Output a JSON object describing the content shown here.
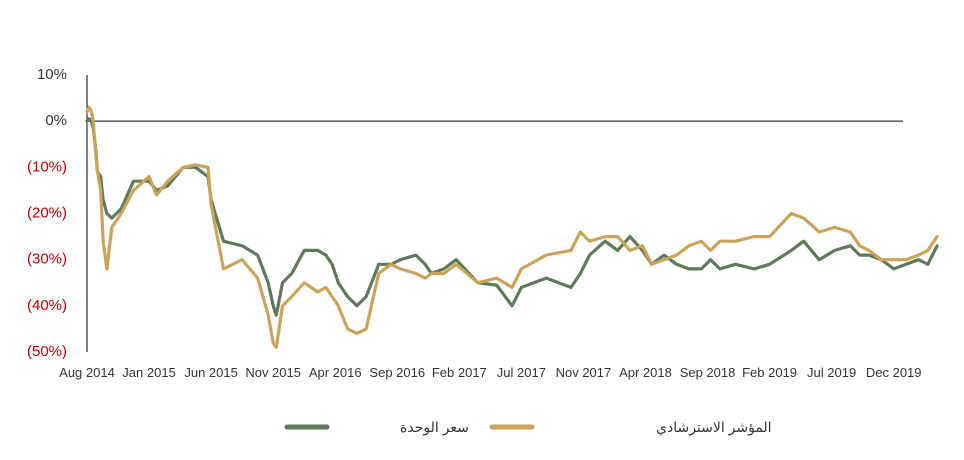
{
  "chart_data": {
    "type": "line",
    "title": "",
    "xlabel": "",
    "ylabel": "",
    "ylim": [
      -50,
      10
    ],
    "yticks": [
      {
        "value": 10,
        "label": "10%"
      },
      {
        "value": 0,
        "label": "0%"
      },
      {
        "value": -10,
        "label": "(10%)"
      },
      {
        "value": -20,
        "label": "(20%)"
      },
      {
        "value": -30,
        "label": "(30%)"
      },
      {
        "value": -40,
        "label": "(40%)"
      },
      {
        "value": -50,
        "label": "(50%)"
      }
    ],
    "categories": [
      "Aug 2014",
      "Jan 2015",
      "Jun 2015",
      "Nov 2015",
      "Apr 2016",
      "Sep 2016",
      "Feb 2017",
      "Jul 2017",
      "Nov 2017",
      "Apr 2018",
      "Sep 2018",
      "Feb 2019",
      "Jul 2019",
      "Dec 2019"
    ],
    "x": [
      0,
      0.03,
      0.06,
      0.08,
      0.1,
      0.14,
      0.17,
      0.22,
      0.26,
      0.32,
      0.4,
      0.55,
      0.75,
      1.0,
      1.12,
      1.3,
      1.55,
      1.75,
      1.95,
      2.0,
      2.2,
      2.5,
      2.75,
      2.92,
      3.0,
      3.05,
      3.15,
      3.3,
      3.5,
      3.72,
      3.85,
      3.95,
      4.05,
      4.2,
      4.35,
      4.5,
      4.7,
      4.9,
      5.05,
      5.3,
      5.45,
      5.55,
      5.75,
      5.95,
      6.3,
      6.6,
      6.85,
      7.0,
      7.4,
      7.8,
      7.95,
      8.1,
      8.35,
      8.55,
      8.75,
      8.95,
      9.1,
      9.3,
      9.5,
      9.7,
      9.9,
      10.05,
      10.2,
      10.45,
      10.75,
      11.0,
      11.35,
      11.55,
      11.8,
      12.05,
      12.3,
      12.45,
      12.6,
      12.8,
      13.0,
      13.2,
      13.4,
      13.55,
      13.7
    ],
    "series": [
      {
        "name": "سعر الوحدة",
        "color": "#5e7a5a",
        "values": [
          0,
          0.5,
          0.3,
          -0.5,
          -1.5,
          -6,
          -11,
          -12,
          -17,
          -20,
          -21,
          -19,
          -13,
          -13,
          -15,
          -14,
          -10,
          -10,
          -12,
          -17,
          -26,
          -27,
          -29,
          -35,
          -40,
          -42,
          -35,
          -33,
          -28,
          -28,
          -29,
          -31,
          -35,
          -38,
          -40,
          -38,
          -31,
          -31,
          -30,
          -29,
          -31,
          -33,
          -32,
          -30,
          -35,
          -35.5,
          -40,
          -36,
          -34,
          -36,
          -33,
          -29,
          -26,
          -28,
          -25,
          -28,
          -31,
          -29,
          -31,
          -32,
          -32,
          -30,
          -32,
          -31,
          -32,
          -31,
          -28,
          -26,
          -30,
          -28,
          -27,
          -29,
          -29,
          -30,
          -32,
          -31,
          -30,
          -31,
          -27
        ]
      },
      {
        "name": "المؤشر الاسترشادي",
        "color": "#c9a45a",
        "values": [
          2,
          3,
          2.5,
          1.5,
          0,
          -7,
          -11,
          -15,
          -26,
          -32,
          -23,
          -20,
          -15,
          -12,
          -16,
          -13,
          -10,
          -9.5,
          -10,
          -18,
          -32,
          -30,
          -34,
          -42,
          -48,
          -49,
          -40,
          -38,
          -35,
          -37,
          -36,
          -38,
          -40,
          -45,
          -46,
          -45,
          -33,
          -31,
          -32,
          -33,
          -34,
          -33,
          -33,
          -31,
          -35,
          -34,
          -36,
          -32,
          -29,
          -28,
          -24,
          -26,
          -25,
          -25,
          -28,
          -27,
          -31,
          -30,
          -29,
          -27,
          -26,
          -28,
          -26,
          -26,
          -25,
          -25,
          -20,
          -21,
          -24,
          -23,
          -24,
          -27,
          -28,
          -30,
          -30,
          -30,
          -29,
          -28,
          -25
        ]
      }
    ],
    "legend": {
      "position": "bottom"
    },
    "grid": false,
    "zero_line": true
  }
}
